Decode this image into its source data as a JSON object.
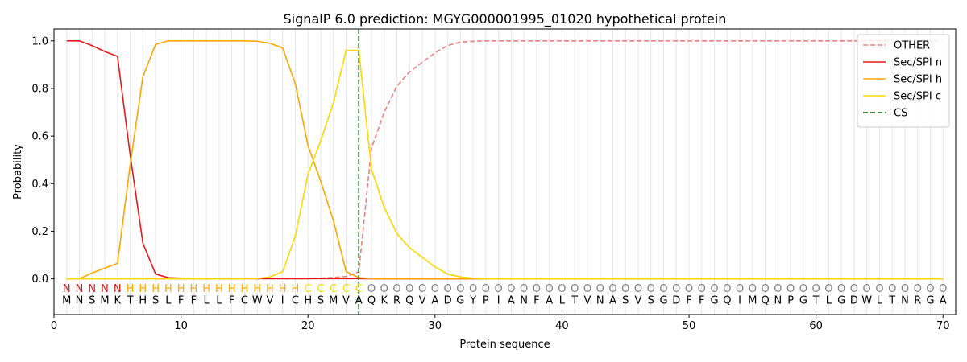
{
  "chart_data": {
    "type": "line",
    "title": "SignalP 6.0 prediction: MGYG000001995_01020 hypothetical protein",
    "xlabel": "Protein sequence",
    "ylabel": "Probability",
    "xlim": [
      0,
      71
    ],
    "ylim": [
      -0.15,
      1.05
    ],
    "xticks": [
      0,
      10,
      20,
      30,
      40,
      50,
      60,
      70
    ],
    "yticks": [
      0.0,
      0.2,
      0.4,
      0.6,
      0.8,
      1.0
    ],
    "ytick_labels": [
      "0.0",
      "0.2",
      "0.4",
      "0.6",
      "0.8",
      "1.0"
    ],
    "grid": "vertical lines at each residue position",
    "legend_position": "top-right",
    "x": [
      1,
      2,
      3,
      4,
      5,
      6,
      7,
      8,
      9,
      10,
      11,
      12,
      13,
      14,
      15,
      16,
      17,
      18,
      19,
      20,
      21,
      22,
      23,
      24,
      25,
      26,
      27,
      28,
      29,
      30,
      31,
      32,
      33,
      34,
      35,
      36,
      37,
      38,
      39,
      40,
      41,
      42,
      43,
      44,
      45,
      46,
      47,
      48,
      49,
      50,
      51,
      52,
      53,
      54,
      55,
      56,
      57,
      58,
      59,
      60,
      61,
      62,
      63,
      64,
      65,
      66,
      67,
      68,
      69,
      70
    ],
    "series": [
      {
        "name": "OTHER",
        "color": "#f08080",
        "dash": "dashed",
        "values": [
          0.0,
          0.0,
          0.0,
          0.0,
          0.0,
          0.0,
          0.0,
          0.0,
          0.0,
          0.0,
          0.0,
          0.0,
          0.0,
          0.0,
          0.0,
          0.0,
          0.0,
          0.0,
          0.0,
          0.0,
          0.003,
          0.006,
          0.01,
          0.03,
          0.55,
          0.7,
          0.81,
          0.87,
          0.91,
          0.95,
          0.98,
          0.995,
          0.998,
          1.0,
          1.0,
          1.0,
          1.0,
          1.0,
          1.0,
          1.0,
          1.0,
          1.0,
          1.0,
          1.0,
          1.0,
          1.0,
          1.0,
          1.0,
          1.0,
          1.0,
          1.0,
          1.0,
          1.0,
          1.0,
          1.0,
          1.0,
          1.0,
          1.0,
          1.0,
          1.0,
          1.0,
          1.0,
          1.0,
          1.0,
          1.0,
          1.0,
          1.0,
          1.0,
          1.0,
          1.0
        ]
      },
      {
        "name": "Sec/SPI n",
        "color": "#e31a1c",
        "dash": "solid",
        "values": [
          1.0,
          1.0,
          0.98,
          0.955,
          0.935,
          0.52,
          0.15,
          0.02,
          0.005,
          0.003,
          0.002,
          0.002,
          0.001,
          0.001,
          0.001,
          0.001,
          0.001,
          0.001,
          0.001,
          0.001,
          0.001,
          0.001,
          0.001,
          0.001,
          0.0,
          0.0,
          0.0,
          0.0,
          0.0,
          0.0,
          0.0,
          0.0,
          0.0,
          0.0,
          0.0,
          0.0,
          0.0,
          0.0,
          0.0,
          0.0,
          0.0,
          0.0,
          0.0,
          0.0,
          0.0,
          0.0,
          0.0,
          0.0,
          0.0,
          0.0,
          0.0,
          0.0,
          0.0,
          0.0,
          0.0,
          0.0,
          0.0,
          0.0,
          0.0,
          0.0,
          0.0,
          0.0,
          0.0,
          0.0,
          0.0,
          0.0,
          0.0,
          0.0,
          0.0,
          0.0
        ]
      },
      {
        "name": "Sec/SPI h",
        "color": "#ffa500",
        "dash": "solid",
        "values": [
          0.0,
          0.0,
          0.025,
          0.045,
          0.065,
          0.48,
          0.85,
          0.985,
          1.0,
          1.0,
          1.0,
          1.0,
          1.0,
          1.0,
          1.0,
          0.998,
          0.99,
          0.97,
          0.82,
          0.56,
          0.41,
          0.245,
          0.03,
          0.005,
          0.0,
          0.0,
          0.0,
          0.0,
          0.0,
          0.0,
          0.0,
          0.0,
          0.0,
          0.0,
          0.0,
          0.0,
          0.0,
          0.0,
          0.0,
          0.0,
          0.0,
          0.0,
          0.0,
          0.0,
          0.0,
          0.0,
          0.0,
          0.0,
          0.0,
          0.0,
          0.0,
          0.0,
          0.0,
          0.0,
          0.0,
          0.0,
          0.0,
          0.0,
          0.0,
          0.0,
          0.0,
          0.0,
          0.0,
          0.0,
          0.0,
          0.0,
          0.0,
          0.0,
          0.0,
          0.0
        ]
      },
      {
        "name": "Sec/SPI c",
        "color": "#ffd700",
        "dash": "solid",
        "values": [
          0.0,
          0.0,
          0.0,
          0.0,
          0.0,
          0.0,
          0.0,
          0.0,
          0.0,
          0.0,
          0.0,
          0.0,
          0.0,
          0.0,
          0.0,
          0.001,
          0.008,
          0.03,
          0.18,
          0.44,
          0.58,
          0.74,
          0.96,
          0.96,
          0.46,
          0.3,
          0.19,
          0.13,
          0.09,
          0.05,
          0.02,
          0.008,
          0.003,
          0.0,
          0.0,
          0.0,
          0.0,
          0.0,
          0.0,
          0.0,
          0.0,
          0.0,
          0.0,
          0.0,
          0.0,
          0.0,
          0.0,
          0.0,
          0.0,
          0.0,
          0.0,
          0.0,
          0.0,
          0.0,
          0.0,
          0.0,
          0.0,
          0.0,
          0.0,
          0.0,
          0.0,
          0.0,
          0.0,
          0.0,
          0.0,
          0.0,
          0.0,
          0.0,
          0.0,
          0.0
        ]
      }
    ],
    "cleavage_site": {
      "name": "CS",
      "x": 24,
      "color": "#006400",
      "dash": "dashed"
    },
    "sequence": [
      "M",
      "N",
      "S",
      "M",
      "K",
      "T",
      "H",
      "S",
      "L",
      "F",
      "F",
      "L",
      "L",
      "F",
      "C",
      "W",
      "V",
      "I",
      "C",
      "H",
      "S",
      "M",
      "V",
      "A",
      "Q",
      "K",
      "R",
      "Q",
      "V",
      "A",
      "D",
      "G",
      "Y",
      "P",
      "I",
      "A",
      "N",
      "F",
      "A",
      "L",
      "T",
      "V",
      "N",
      "A",
      "S",
      "V",
      "S",
      "G",
      "D",
      "F",
      "F",
      "G",
      "Q",
      "I",
      "M",
      "Q",
      "N",
      "P",
      "G",
      "T",
      "L",
      "G",
      "D",
      "W",
      "L",
      "T",
      "N",
      "R",
      "G",
      "A"
    ],
    "labels": [
      "N",
      "N",
      "N",
      "N",
      "N",
      "H",
      "H",
      "H",
      "H",
      "H",
      "H",
      "H",
      "H",
      "H",
      "H",
      "H",
      "H",
      "H",
      "H",
      "C",
      "C",
      "C",
      "C",
      "C",
      "O",
      "O",
      "O",
      "O",
      "O",
      "O",
      "O",
      "O",
      "O",
      "O",
      "O",
      "O",
      "O",
      "O",
      "O",
      "O",
      "O",
      "O",
      "O",
      "O",
      "O",
      "O",
      "O",
      "O",
      "O",
      "O",
      "O",
      "O",
      "O",
      "O",
      "O",
      "O",
      "O",
      "O",
      "O",
      "O",
      "O",
      "O",
      "O",
      "O",
      "O",
      "O",
      "O",
      "O",
      "O",
      "O"
    ],
    "label_colors": {
      "N": "#e31a1c",
      "H": "#ffa500",
      "C": "#ffd700",
      "O": "#808080"
    }
  }
}
